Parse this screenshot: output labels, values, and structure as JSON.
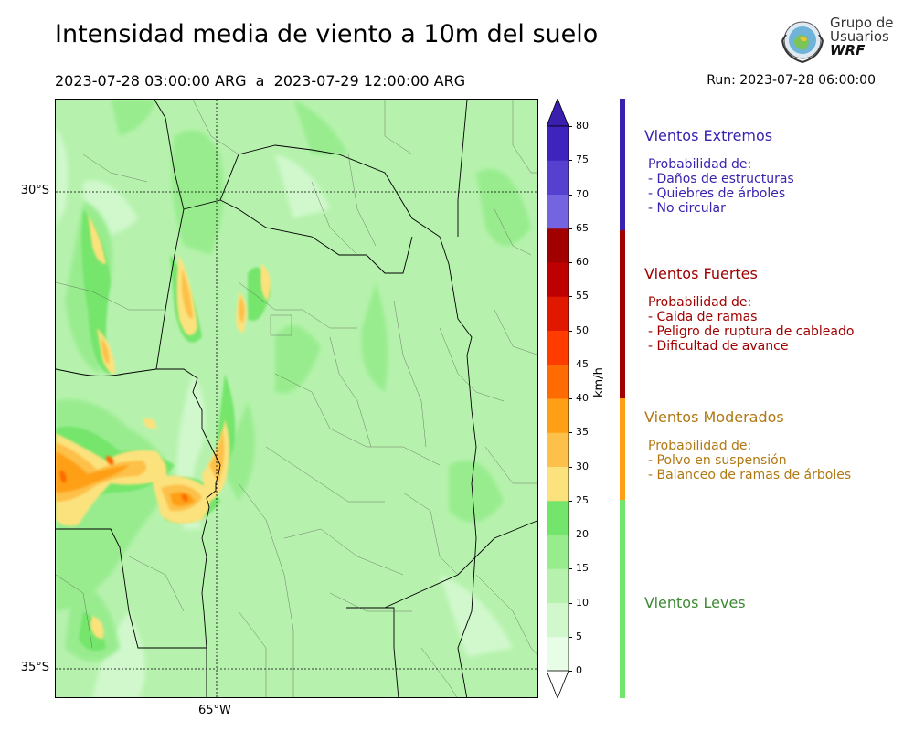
{
  "header": {
    "title": "Intensidad media de viento a 10m del suelo",
    "period_start": "2023-07-28 03:00:00 ARG",
    "period_sep": "a",
    "period_end": "2023-07-29 12:00:00 ARG",
    "run": "Run: 2023-07-28 06:00:00"
  },
  "logo": {
    "line1": "Grupo de",
    "line2": "Usuarios",
    "line3": "WRF"
  },
  "map": {
    "lat_labels": [
      "30°S",
      "35°S"
    ],
    "lon_labels": [
      "65°W"
    ]
  },
  "colorbar": {
    "unit": "km/h",
    "ticks": [
      "0",
      "5",
      "10",
      "15",
      "20",
      "25",
      "30",
      "35",
      "40",
      "45",
      "50",
      "55",
      "60",
      "65",
      "70",
      "75",
      "80"
    ],
    "colors": [
      "#e8fde6",
      "#d0f8cc",
      "#b6f2ad",
      "#98ec8e",
      "#74e56c",
      "#fce27d",
      "#fdc04a",
      "#fe9f15",
      "#fd6b02",
      "#fe3c00",
      "#e01800",
      "#bf0000",
      "#a00000",
      "#7464e0",
      "#5540cf",
      "#3f23bd"
    ],
    "extend_min_color": "#ffffff",
    "extend_max_color": "#3a1fae"
  },
  "categories": [
    {
      "title": "Vientos Extremos",
      "color": "#3a22ae",
      "bar_color": "#3a22ae",
      "lines": [
        "Probabilidad de:",
        "- Daños de estructuras",
        "- Quiebres de árboles",
        "- No circular"
      ]
    },
    {
      "title": "Vientos Fuertes",
      "color": "#a00000",
      "bar_color": "#a00000",
      "lines": [
        "Probabilidad de:",
        "- Caida de ramas",
        "- Peligro de ruptura de cableado",
        "- Dificultad de avance"
      ]
    },
    {
      "title": "Vientos Moderados",
      "color": "#b07812",
      "bar_color": "#fe9f15",
      "lines": [
        "Probabilidad de:",
        "- Polvo en suspensión",
        "- Balanceo de ramas de árboles"
      ]
    },
    {
      "title": "Vientos Leves",
      "color": "#3c8a34",
      "bar_color": "#74e56c",
      "lines": []
    }
  ]
}
